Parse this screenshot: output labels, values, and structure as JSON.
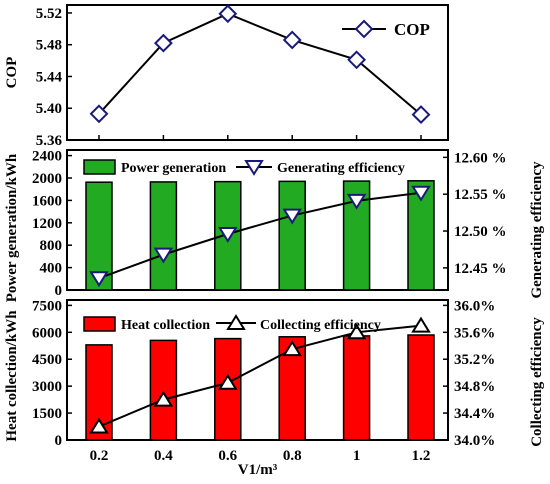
{
  "chart_data": [
    {
      "type": "line",
      "x": [
        "0.2",
        "0.4",
        "0.6",
        "0.8",
        "1",
        "1.2"
      ],
      "series": [
        {
          "name": "COP",
          "values": [
            5.393,
            5.482,
            5.519,
            5.486,
            5.461,
            5.392
          ],
          "color": "#1a1a7a",
          "marker": "diamond"
        }
      ],
      "ylabel": "COP",
      "ylim": [
        5.36,
        5.53
      ],
      "yticks": [
        "5.36",
        "5.40",
        "5.44",
        "5.48",
        "5.52"
      ],
      "legend": {
        "position": "top-right"
      }
    },
    {
      "type": "bar+line",
      "categories": [
        "0.2",
        "0.4",
        "0.6",
        "0.8",
        "1",
        "1.2"
      ],
      "series": [
        {
          "name": "Power generation",
          "kind": "bar",
          "axis": "left",
          "values": [
            1925,
            1930,
            1935,
            1940,
            1945,
            1950
          ],
          "color": "#22aa22"
        },
        {
          "name": "Generating efficiency",
          "kind": "line",
          "axis": "right",
          "values": [
            12.436,
            12.468,
            12.496,
            12.521,
            12.541,
            12.552
          ],
          "color": "#1a1a7a",
          "marker": "triangle-down"
        }
      ],
      "ylabel": "Power generation/kWh",
      "ylim": [
        0,
        2500
      ],
      "yticks": [
        "0",
        "400",
        "800",
        "1200",
        "1600",
        "2000",
        "2400"
      ],
      "ylabel_right": "Generating efficiency",
      "ylim_right": [
        12.42,
        12.61
      ],
      "yticks_right": [
        "12.45 %",
        "12.50 %",
        "12.55 %",
        "12.60 %"
      ],
      "legend": {
        "position": "top"
      }
    },
    {
      "type": "bar+line",
      "categories": [
        "0.2",
        "0.4",
        "0.6",
        "0.8",
        "1",
        "1.2"
      ],
      "series": [
        {
          "name": "Heat collection",
          "kind": "bar",
          "axis": "left",
          "values": [
            5300,
            5550,
            5650,
            5750,
            5800,
            5850
          ],
          "color": "#ff0000"
        },
        {
          "name": "Collecting efficiency",
          "kind": "line",
          "axis": "right",
          "values": [
            34.2,
            34.6,
            34.85,
            35.35,
            35.6,
            35.7
          ],
          "color": "#000000",
          "marker": "triangle-up"
        }
      ],
      "xlabel": "V1/m³",
      "ylabel": "Heat collection/kWh",
      "ylim": [
        0,
        7800
      ],
      "yticks": [
        "0",
        "1500",
        "3000",
        "4500",
        "6000",
        "7500"
      ],
      "ylabel_right": "Collecting efficiency",
      "ylim_right": [
        34.0,
        36.08
      ],
      "yticks_right": [
        "34.0%",
        "34.4%",
        "34.8%",
        "35.2%",
        "35.6%",
        "36.0%"
      ],
      "legend": {
        "position": "top"
      }
    }
  ]
}
